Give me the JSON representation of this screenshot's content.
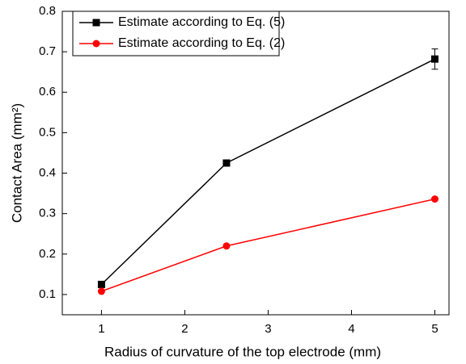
{
  "chart_data": {
    "type": "line",
    "xlabel": "Radius of curvature of the top electrode (mm)",
    "ylabel": "Contact Area (mm²)",
    "x": [
      1,
      2.5,
      5
    ],
    "series": [
      {
        "name": "Estimate according to Eq. (5)",
        "color": "#000000",
        "marker": "square",
        "values": [
          0.125,
          0.425,
          0.682
        ],
        "errors": [
          0.005,
          0.005,
          0.025
        ]
      },
      {
        "name": "Estimate according to Eq. (2)",
        "color": "#ff0000",
        "marker": "circle",
        "values": [
          0.108,
          0.22,
          0.336
        ]
      }
    ],
    "xlim": [
      0.53,
      5.17
    ],
    "xticks": [
      1,
      2,
      3,
      4,
      5
    ],
    "ylim": [
      0.05,
      0.8
    ],
    "yticks": [
      0.1,
      0.2,
      0.3,
      0.4,
      0.5,
      0.6,
      0.7,
      0.8
    ],
    "legend": "upper-left",
    "grid": false
  }
}
